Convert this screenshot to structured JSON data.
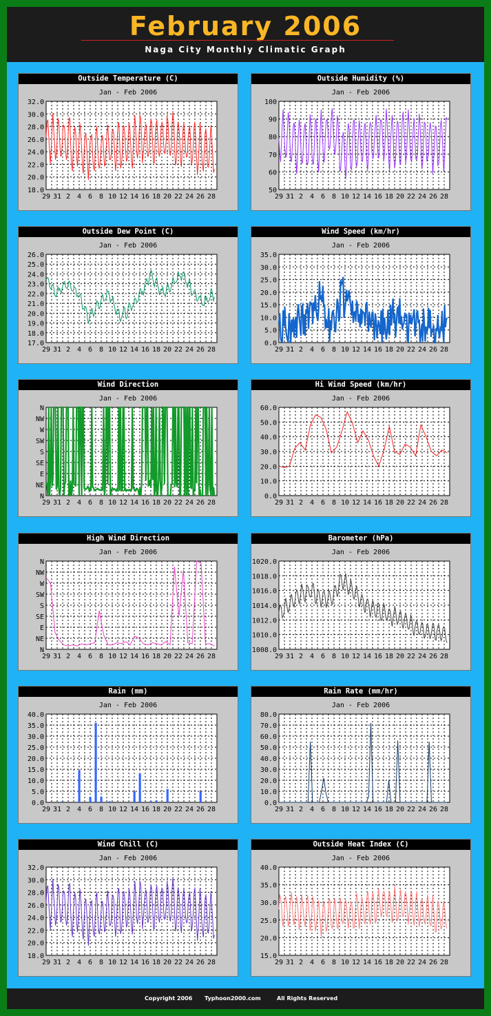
{
  "page": {
    "title": "February 2006",
    "subtitle": "Naga City Monthly Climatic Graph",
    "footer": {
      "copyright": "Copyright 2006",
      "site": "Typhoon2000.com",
      "rights": "All Rights Reserved"
    }
  },
  "chart_data": [
    {
      "id": "temp",
      "type": "line",
      "title": "Outside Temperature (C)",
      "subtitle": "Jan - Feb  2006",
      "color": "#ff2a2a",
      "ylim": [
        18,
        32
      ],
      "yticks": [
        "32.0",
        "30.0",
        "28.0",
        "26.0",
        "24.0",
        "22.0",
        "20.0",
        "18.0"
      ],
      "xticks": [
        "29",
        "31",
        "2",
        "4",
        "6",
        "8",
        "10",
        "12",
        "14",
        "16",
        "18",
        "20",
        "22",
        "24",
        "26",
        "28"
      ],
      "gen": {
        "mode": "diurnal",
        "base": 26,
        "amp": 4,
        "noise": 0.8,
        "trend": [
          26,
          26,
          25.5,
          25,
          24,
          24,
          25,
          25,
          25.5,
          26,
          26,
          26,
          26,
          25.5,
          25,
          24,
          24.5
        ],
        "seed": 3
      }
    },
    {
      "id": "hum",
      "type": "line",
      "title": "Outside Humidity (%)",
      "subtitle": "Jan - Feb  2006",
      "color": "#9933ff",
      "ylim": [
        50,
        100
      ],
      "yticks": [
        "100",
        "90",
        "80",
        "70",
        "60",
        "50"
      ],
      "xticks": [
        "29",
        "31",
        "2",
        "4",
        "6",
        "8",
        "10",
        "12",
        "14",
        "16",
        "18",
        "20",
        "22",
        "24",
        "26",
        "28"
      ],
      "gen": {
        "mode": "diurnal",
        "base": 78,
        "amp": 16,
        "noise": 3,
        "trend": [
          80,
          78,
          76,
          74,
          78,
          84,
          72,
          74,
          76,
          78,
          80,
          76,
          78,
          76,
          78,
          76,
          78
        ],
        "seed": 7,
        "invert": true,
        "clip": [
          52,
          96
        ]
      }
    },
    {
      "id": "dew",
      "type": "line",
      "title": "Outside Dew Point (C)",
      "subtitle": "Jan - Feb  2006",
      "color": "#119966",
      "ylim": [
        17,
        26
      ],
      "yticks": [
        "26.0",
        "25.0",
        "24.0",
        "23.0",
        "22.0",
        "21.0",
        "20.0",
        "19.0",
        "18.0",
        "17.0"
      ],
      "xticks": [
        "29",
        "31",
        "2",
        "4",
        "6",
        "8",
        "10",
        "12",
        "14",
        "16",
        "18",
        "20",
        "22",
        "24",
        "26",
        "28"
      ],
      "gen": {
        "mode": "diurnal",
        "base": 22,
        "amp": 0.6,
        "noise": 0.5,
        "trend": [
          23.5,
          22,
          23,
          22,
          19.5,
          21,
          22,
          19.5,
          20.5,
          22,
          24,
          22,
          23,
          24,
          22,
          21,
          22
        ],
        "seed": 11
      }
    },
    {
      "id": "wind",
      "type": "line",
      "title": "Wind Speed (km/hr)",
      "subtitle": "Jan - Feb  2006",
      "color": "#1566cc",
      "ylim": [
        0,
        35
      ],
      "yticks": [
        "35.0",
        "30.0",
        "25.0",
        "20.0",
        "15.0",
        "10.0",
        "5.0",
        "0.0"
      ],
      "xticks": [
        "29",
        "31",
        "2",
        "4",
        "6",
        "8",
        "10",
        "12",
        "14",
        "16",
        "18",
        "20",
        "22",
        "24",
        "26",
        "28"
      ],
      "gen": {
        "mode": "spiky",
        "base": 5,
        "amp": 9,
        "noise": 5,
        "trend": [
          4,
          5,
          6,
          10,
          17,
          4,
          18,
          12,
          8,
          6,
          6,
          8,
          7,
          7,
          4,
          6,
          6
        ],
        "seed": 19,
        "clip": [
          0,
          32
        ]
      }
    },
    {
      "id": "winddir",
      "type": "line",
      "title": "Wind Direction",
      "subtitle": "Jan - Feb  2006",
      "color": "#129a2a",
      "ylim": [
        0,
        8
      ],
      "yticks": [
        "N",
        "NW",
        "W",
        "SW",
        "S",
        "SE",
        "E",
        "NE",
        "N"
      ],
      "xticks": [
        "29",
        "31",
        "2",
        "4",
        "6",
        "8",
        "10",
        "12",
        "14",
        "16",
        "18",
        "20",
        "22",
        "24",
        "26",
        "28"
      ],
      "gen": {
        "mode": "direction",
        "seed": 23
      }
    },
    {
      "id": "hiwind",
      "type": "line",
      "title": "Hi Wind Speed (km/hr)",
      "subtitle": "Jan - Feb  2006",
      "color": "#ff2020",
      "ylim": [
        0,
        60
      ],
      "yticks": [
        "60.0",
        "50.0",
        "40.0",
        "30.0",
        "20.0",
        "10.0",
        "0.0"
      ],
      "xticks": [
        "29",
        "31",
        "2",
        "4",
        "6",
        "8",
        "10",
        "12",
        "14",
        "16",
        "18",
        "20",
        "22",
        "24",
        "26",
        "28"
      ],
      "values": [
        20,
        19,
        20,
        32,
        36,
        31,
        48,
        55,
        53,
        45,
        29,
        33,
        44,
        57,
        49,
        36,
        44,
        38,
        27,
        20,
        31,
        47,
        30,
        28,
        35,
        33,
        27,
        48,
        40,
        30,
        27,
        31,
        29
      ]
    },
    {
      "id": "hiwinddir",
      "type": "line",
      "title": "High Wind Direction",
      "subtitle": "Jan - Feb  2006",
      "color": "#ee44cc",
      "ylim": [
        0,
        8
      ],
      "yticks": [
        "N",
        "NW",
        "W",
        "SW",
        "S",
        "SE",
        "E",
        "NE",
        "N"
      ],
      "xticks": [
        "29",
        "31",
        "2",
        "4",
        "6",
        "8",
        "10",
        "12",
        "14",
        "16",
        "18",
        "20",
        "22",
        "24",
        "26",
        "28"
      ],
      "values": [
        6.5,
        6,
        1.5,
        0.8,
        0.4,
        0.3,
        0.4,
        0.3,
        0.5,
        0.4,
        0.5,
        0.6,
        3.5,
        1.3,
        0.4,
        0.4,
        0.6,
        0.5,
        0.7,
        0.4,
        1.2,
        1.0,
        0.5,
        0.4,
        0.6,
        0.5,
        0.4,
        0.7,
        0.4,
        7.5,
        3.0,
        7.2,
        0.6,
        0.5,
        8.0,
        7.8,
        0.5,
        0.5,
        0.3
      ]
    },
    {
      "id": "baro",
      "type": "line",
      "title": "Barometer (hPa)",
      "subtitle": "Jan - Feb  2006",
      "color": "#444444",
      "ylim": [
        1008,
        1020
      ],
      "yticks": [
        "1020.0",
        "1018.0",
        "1016.0",
        "1014.0",
        "1012.0",
        "1010.0",
        "1008.0"
      ],
      "xticks": [
        "29",
        "31",
        "2",
        "4",
        "6",
        "8",
        "10",
        "12",
        "14",
        "16",
        "18",
        "20",
        "22",
        "24",
        "26",
        "28"
      ],
      "gen": {
        "mode": "diurnal",
        "base": 1013,
        "amp": 1.3,
        "noise": 0.3,
        "trend": [
          1013,
          1014,
          1015.5,
          1016,
          1015,
          1015,
          1017.5,
          1016,
          1014.5,
          1013.5,
          1013,
          1012.5,
          1012,
          1011,
          1010.5,
          1010.5,
          1010
        ],
        "seed": 31
      }
    },
    {
      "id": "rain",
      "type": "bar",
      "title": "Rain (mm)",
      "subtitle": "Jan - Feb  2006",
      "color": "#3366ff",
      "ylim": [
        0,
        40
      ],
      "yticks": [
        "40.0",
        "35.0",
        "30.0",
        "25.0",
        "20.0",
        "15.0",
        "10.0",
        "5.0",
        "0.0"
      ],
      "xticks": [
        "29",
        "31",
        "2",
        "4",
        "6",
        "8",
        "10",
        "12",
        "14",
        "16",
        "18",
        "20",
        "22",
        "24",
        "26",
        "28"
      ],
      "values": [
        0,
        0,
        0,
        0,
        0,
        0,
        0.4,
        0,
        0,
        0,
        0,
        0,
        14.5,
        0,
        0,
        0,
        2.5,
        0,
        36,
        0,
        2.6,
        0,
        0,
        0.5,
        0,
        0,
        0,
        0,
        0,
        0,
        0,
        0,
        5,
        0,
        13,
        0,
        0,
        0,
        0.5,
        0,
        0.8,
        0,
        0,
        0,
        6,
        0,
        0,
        0,
        0,
        0,
        0,
        0,
        0,
        0,
        0,
        0,
        5,
        0,
        0,
        0,
        0,
        0
      ]
    },
    {
      "id": "rainrate",
      "type": "line",
      "title": "Rain Rate (mm/hr)",
      "subtitle": "Jan - Feb  2006",
      "color": "#123a6a",
      "ylim": [
        0,
        80
      ],
      "yticks": [
        "80.0",
        "70.0",
        "60.0",
        "50.0",
        "40.0",
        "30.0",
        "20.0",
        "10.0",
        "0.0"
      ],
      "xticks": [
        "29",
        "31",
        "2",
        "4",
        "6",
        "8",
        "10",
        "12",
        "14",
        "16",
        "18",
        "20",
        "22",
        "24",
        "26",
        "28"
      ],
      "values": [
        0,
        0,
        0,
        0,
        0,
        0,
        0,
        0,
        0,
        0,
        0,
        0,
        0,
        0,
        55,
        0,
        0,
        0,
        0,
        10,
        22,
        8,
        0,
        0,
        0,
        0,
        0,
        0,
        0,
        0,
        0,
        0,
        0,
        0,
        0,
        0,
        0,
        0,
        0,
        0,
        5,
        72,
        0,
        0,
        0,
        0,
        0,
        0,
        0,
        20,
        0,
        0,
        0,
        56,
        0,
        0,
        0,
        0,
        0,
        0,
        0,
        0,
        0,
        0,
        0,
        0,
        0,
        55,
        0,
        0,
        0,
        0,
        0,
        0,
        0,
        0
      ]
    },
    {
      "id": "chill",
      "type": "line",
      "title": "Wind Chill (C)",
      "subtitle": "Jan - Feb  2006",
      "color": "#6633cc",
      "ylim": [
        18,
        32
      ],
      "yticks": [
        "32.0",
        "30.0",
        "28.0",
        "26.0",
        "24.0",
        "22.0",
        "20.0",
        "18.0"
      ],
      "xticks": [
        "29",
        "31",
        "2",
        "4",
        "6",
        "8",
        "10",
        "12",
        "14",
        "16",
        "18",
        "20",
        "22",
        "24",
        "26",
        "28"
      ],
      "gen": {
        "mode": "diurnal",
        "base": 26,
        "amp": 4,
        "noise": 0.8,
        "trend": [
          26,
          26,
          25.5,
          25,
          24,
          24,
          25,
          25,
          25.5,
          26,
          26,
          26,
          26,
          25.5,
          25,
          24,
          24.5
        ],
        "seed": 3
      }
    },
    {
      "id": "heat",
      "type": "line",
      "title": "Outside Heat Index (C)",
      "subtitle": "Jan - Feb  2006",
      "color": "#ff7a7a",
      "ylim": [
        15,
        40
      ],
      "yticks": [
        "40.0",
        "35.0",
        "30.0",
        "25.0",
        "20.0",
        "15.0"
      ],
      "xticks": [
        "29",
        "31",
        "2",
        "4",
        "6",
        "8",
        "10",
        "12",
        "14",
        "16",
        "18",
        "20",
        "22",
        "24",
        "26",
        "28"
      ],
      "gen": {
        "mode": "diurnal",
        "base": 28,
        "amp": 5,
        "noise": 1.2,
        "trend": [
          28,
          28,
          27.5,
          27,
          26,
          26,
          27,
          27,
          28,
          29,
          30,
          29,
          29,
          28,
          27,
          26,
          26.5
        ],
        "seed": 5
      }
    }
  ]
}
